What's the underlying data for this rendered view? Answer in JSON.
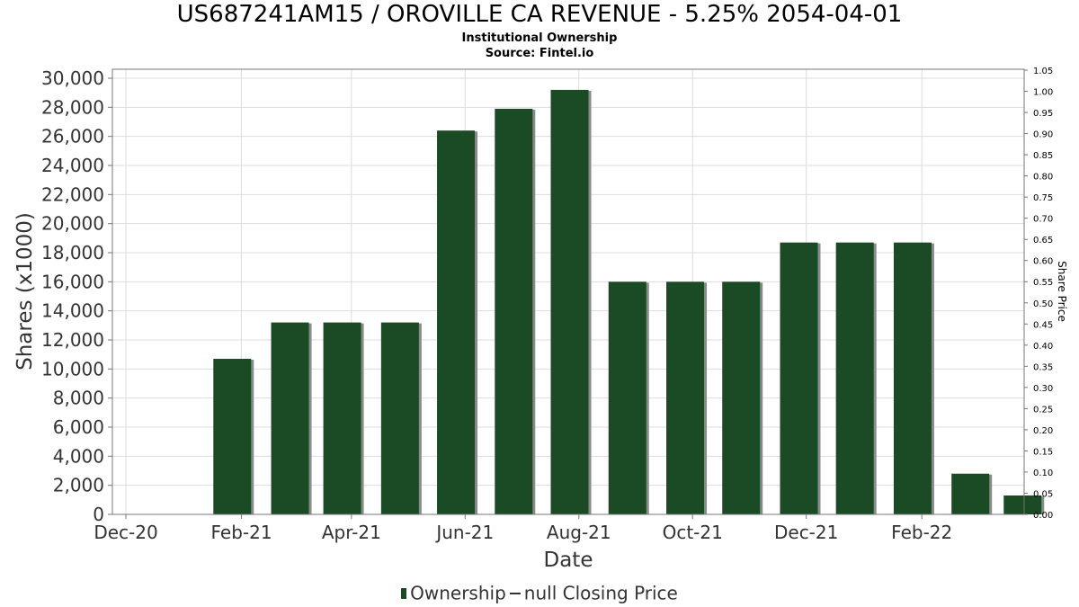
{
  "title": "US687241AM15 / OROVILLE CA REVENUE - 5.25% 2054-04-01",
  "subtitle1": "Institutional Ownership",
  "subtitle2": "Source: Fintel.io",
  "legend": {
    "ownership_label": "Ownership",
    "price_label": "null Closing Price"
  },
  "colors": {
    "bar": "#1a4b24",
    "bar_shadow": "#8a8a8a",
    "grid": "#dddddd",
    "axis": "#777777"
  },
  "chart_data": {
    "type": "bar",
    "xlabel": "Date",
    "ylabel": "Shares (x1000)",
    "y2label": "Share Price",
    "ylim": [
      0,
      30000
    ],
    "y2lim": [
      0.0,
      1.05
    ],
    "yticks": [
      "0",
      "2,000",
      "4,000",
      "6,000",
      "8,000",
      "10,000",
      "12,000",
      "14,000",
      "16,000",
      "18,000",
      "20,000",
      "22,000",
      "24,000",
      "26,000",
      "28,000",
      "30,000"
    ],
    "y2ticks": [
      "0.00",
      "0.05",
      "0.10",
      "0.15",
      "0.20",
      "0.25",
      "0.30",
      "0.35",
      "0.40",
      "0.45",
      "0.50",
      "0.55",
      "0.60",
      "0.65",
      "0.70",
      "0.75",
      "0.80",
      "0.85",
      "0.90",
      "0.95",
      "1.00",
      "1.05"
    ],
    "xticks": [
      "Dec-20",
      "Feb-21",
      "Apr-21",
      "Jun-21",
      "Aug-21",
      "Oct-21",
      "Dec-21",
      "Feb-22"
    ],
    "grid": true,
    "legend_position": "bottom",
    "series": [
      {
        "name": "Ownership",
        "x": [
          "2021-01-01",
          "2021-02-01",
          "2021-03-01",
          "2021-04-01",
          "2021-05-01",
          "2021-06-01",
          "2021-07-01",
          "2021-08-01",
          "2021-09-01",
          "2021-10-01",
          "2021-11-01",
          "2021-12-01",
          "2022-01-01",
          "2022-02-01",
          "2022-03-01"
        ],
        "values": [
          10700,
          13200,
          13200,
          13200,
          26400,
          27900,
          29200,
          16000,
          16000,
          16000,
          18700,
          18700,
          18700,
          2800,
          1300
        ]
      }
    ]
  }
}
